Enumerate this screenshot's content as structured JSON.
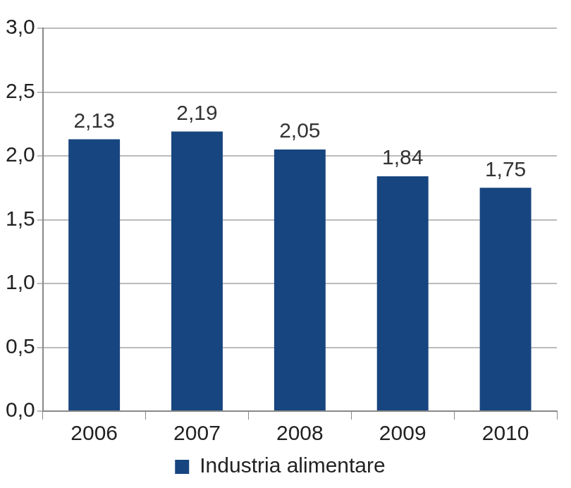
{
  "chart_data": {
    "type": "bar",
    "categories": [
      "2006",
      "2007",
      "2008",
      "2009",
      "2010"
    ],
    "series": [
      {
        "name": "Industria alimentare",
        "color": "#17457f",
        "values": [
          2.13,
          2.19,
          2.05,
          1.84,
          1.75
        ],
        "value_labels": [
          "2,13",
          "2,19",
          "2,05",
          "1,84",
          "1,75"
        ]
      }
    ],
    "ylim": [
      0,
      3
    ],
    "yticks": [
      {
        "value": 0,
        "label": "0,0"
      },
      {
        "value": 0.5,
        "label": "0,5"
      },
      {
        "value": 1,
        "label": "1,0"
      },
      {
        "value": 1.5,
        "label": "1,5"
      },
      {
        "value": 2,
        "label": "2,0"
      },
      {
        "value": 2.5,
        "label": "2,5"
      },
      {
        "value": 3,
        "label": "3,0"
      }
    ],
    "grid": true,
    "legend": "bottom",
    "data_labels": true
  }
}
